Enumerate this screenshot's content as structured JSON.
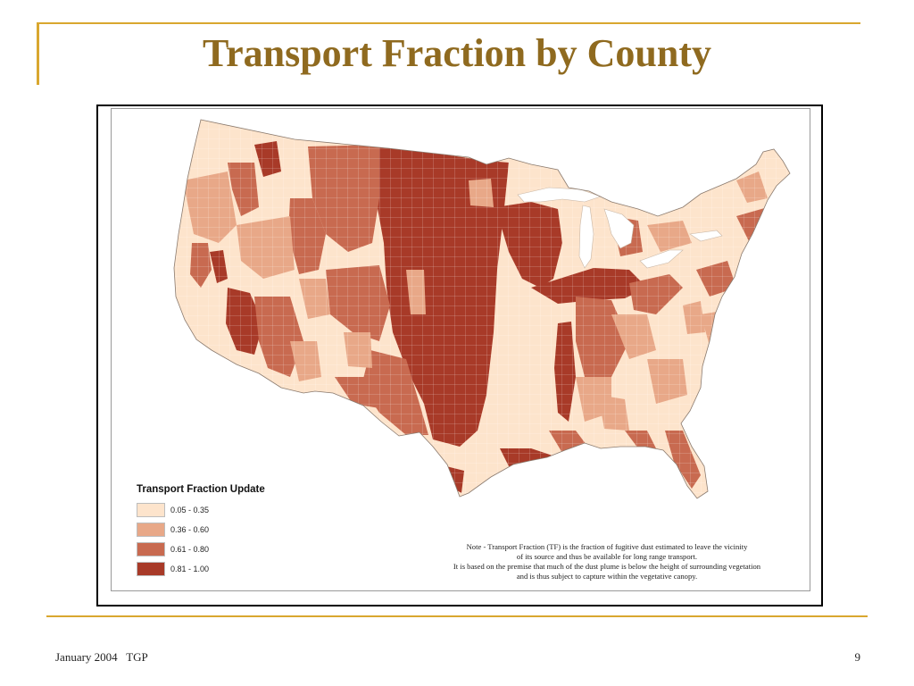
{
  "slide": {
    "title": "Transport Fraction by County",
    "footer_left": "January 2004   TGP",
    "page_number": "9"
  },
  "map": {
    "legend": {
      "title": "Transport Fraction Update",
      "classes": [
        {
          "label": "0.05 - 0.35",
          "color": "#fde4cc"
        },
        {
          "label": "0.36 - 0.60",
          "color": "#e8a888"
        },
        {
          "label": "0.61 - 0.80",
          "color": "#c86a50"
        },
        {
          "label": "0.81 - 1.00",
          "color": "#a83a28"
        }
      ]
    },
    "note_lines": [
      "Note - Transport Fraction (TF) is the fraction of fugitive dust estimated to leave the vicinity",
      "of its source and thus be available for long range transport.",
      "It is based on the premise that much of the dust plume is below the height of surrounding vegetation",
      "and is thus subject to capture within the vegetative canopy."
    ],
    "colors": {
      "accent": "#d9a72f",
      "title": "#8f6a1f",
      "county_border": "#ffffff",
      "lakes": "#ffffff"
    }
  }
}
